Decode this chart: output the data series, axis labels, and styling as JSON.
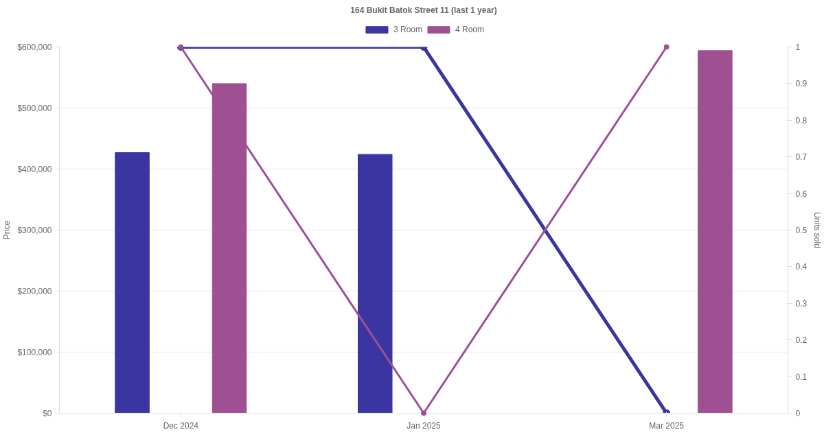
{
  "chart_data": {
    "type": "bar",
    "title": "164 Bukit Batok Street 11 (last 1 year)",
    "categories": [
      "Dec 2024",
      "Jan 2025",
      "Mar 2025"
    ],
    "series": [
      {
        "name": "3 Room",
        "color": "#3a35a0",
        "values": [
          427000,
          424000,
          null
        ]
      },
      {
        "name": "4 Room",
        "color": "#9e5093",
        "values": [
          540000,
          null,
          594000
        ]
      },
      {
        "type": "line",
        "axis": "y2",
        "color": "#3a35a0",
        "values": [
          1,
          1,
          0
        ]
      },
      {
        "type": "line",
        "axis": "y2",
        "color": "#9e5093",
        "values": [
          1,
          0,
          1
        ]
      }
    ],
    "ylabel": "Price",
    "y2label": "Units sold",
    "ylim": [
      0,
      600000
    ],
    "yticks": [
      {
        "value": 0,
        "label": "$0"
      },
      {
        "value": 100000,
        "label": "$100,000"
      },
      {
        "value": 200000,
        "label": "$200,000"
      },
      {
        "value": 300000,
        "label": "$300,000"
      },
      {
        "value": 400000,
        "label": "$400,000"
      },
      {
        "value": 500000,
        "label": "$500,000"
      },
      {
        "value": 600000,
        "label": "$600,000"
      }
    ],
    "y2lim": [
      0,
      1
    ],
    "y2ticks": [
      0,
      0.1,
      0.2,
      0.3,
      0.4,
      0.5,
      0.6,
      0.7,
      0.8,
      0.9,
      1
    ],
    "grid": "y",
    "legend": "top",
    "marker": "circle",
    "line_style": "solid"
  }
}
